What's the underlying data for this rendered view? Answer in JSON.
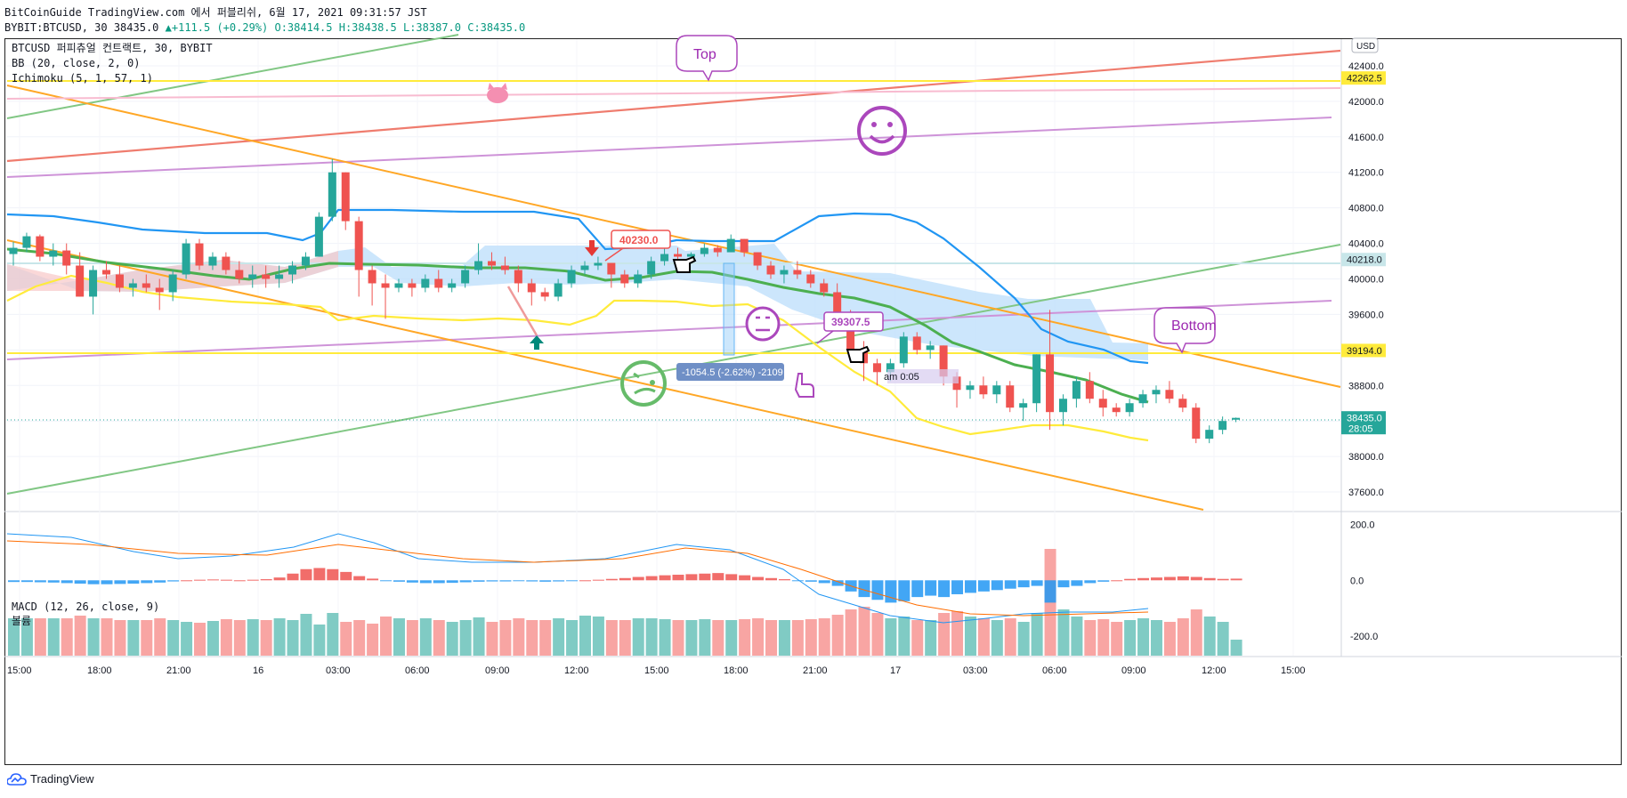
{
  "header": {
    "line1": "BitCoinGuide TradingView.com 에서 퍼블리쉬, 6월 17, 2021 09:31:57 JST",
    "symbol": "BYBIT:BTCUSD, 30",
    "price": "38435.0",
    "change": "+111.5 (+0.29%)",
    "ohlc": "O:38414.5 H:38438.5 L:38387.0 C:38435.0"
  },
  "legend": {
    "title": "BTCUSD 퍼피츄얼 컨트랙트, 30, BYBIT",
    "bb": "BB (20, close, 2, 0)",
    "ichimoku": "Ichimoku (5, 1, 57, 1)",
    "macd": "MACD (12, 26, close, 9)",
    "volume": "볼륨"
  },
  "footer": {
    "brand": "TradingView"
  },
  "colors": {
    "up": "#26a69a",
    "down": "#ef5350",
    "bbBasis": "#4caf50",
    "bbUpper": "#2196f3",
    "bbLower": "#ffeb3b",
    "cloud": "#bbdefb",
    "orange": "#ffa726",
    "green": "#81c784",
    "purple": "#ce93d8",
    "red": "#ef7c6e",
    "yellow": "#ffeb3b",
    "pink": "#f8bbd0"
  },
  "chart_data": {
    "type": "candlestick",
    "currency": "USD",
    "ylim": [
      37400,
      42700
    ],
    "y_ticks": [
      37600,
      38000,
      38400,
      38800,
      39200,
      39600,
      40000,
      40400,
      40800,
      41200,
      41600,
      42000,
      42400
    ],
    "x_ticks": [
      "15:00",
      "18:00",
      "21:00",
      "16",
      "03:00",
      "06:00",
      "09:00",
      "12:00",
      "15:00",
      "18:00",
      "21:00",
      "17",
      "03:00",
      "06:00",
      "09:00",
      "12:00",
      "15:00"
    ],
    "price_labels": [
      {
        "value": 42262.5,
        "text": "42262.5",
        "color": "#ffeb3b"
      },
      {
        "value": 40218.0,
        "text": "40218.0",
        "color": "#c8e6e9"
      },
      {
        "value": 39194.0,
        "text": "39194.0",
        "color": "#ffeb3b"
      },
      {
        "value": 38435.0,
        "text": "38435.0",
        "sub": "28:05",
        "color": "#26a69a"
      }
    ],
    "candles": [
      [
        40280,
        40420,
        40150,
        40350
      ],
      [
        40350,
        40520,
        40300,
        40480
      ],
      [
        40480,
        40500,
        40200,
        40250
      ],
      [
        40250,
        40400,
        40150,
        40320
      ],
      [
        40320,
        40400,
        40050,
        40150
      ],
      [
        40150,
        40300,
        39800,
        39800
      ],
      [
        39800,
        40150,
        39600,
        40100
      ],
      [
        40100,
        40200,
        40000,
        40050
      ],
      [
        40050,
        40150,
        39850,
        39900
      ],
      [
        39900,
        40000,
        39800,
        39950
      ],
      [
        39950,
        40050,
        39850,
        39900
      ],
      [
        39900,
        40000,
        39650,
        39850
      ],
      [
        39850,
        40100,
        39750,
        40050
      ],
      [
        40050,
        40450,
        40000,
        40400
      ],
      [
        40400,
        40450,
        40100,
        40150
      ],
      [
        40150,
        40300,
        40100,
        40250
      ],
      [
        40250,
        40300,
        40050,
        40100
      ],
      [
        40100,
        40200,
        39950,
        40000
      ],
      [
        40000,
        40150,
        39900,
        40050
      ],
      [
        40050,
        40150,
        39900,
        40000
      ],
      [
        40000,
        40150,
        39900,
        40050
      ],
      [
        40050,
        40200,
        39950,
        40150
      ],
      [
        40150,
        40300,
        40100,
        40250
      ],
      [
        40250,
        40750,
        40250,
        40700
      ],
      [
        40700,
        41350,
        40650,
        41200
      ],
      [
        41200,
        41200,
        40550,
        40650
      ],
      [
        40650,
        40700,
        39800,
        40100
      ],
      [
        40100,
        40150,
        39700,
        39950
      ],
      [
        39950,
        40050,
        39550,
        39900
      ],
      [
        39900,
        40000,
        39850,
        39950
      ],
      [
        39950,
        40000,
        39800,
        39900
      ],
      [
        39900,
        40050,
        39850,
        40000
      ],
      [
        40000,
        40100,
        39850,
        39900
      ],
      [
        39900,
        40000,
        39850,
        39950
      ],
      [
        39950,
        40150,
        39900,
        40100
      ],
      [
        40100,
        40400,
        40050,
        40200
      ],
      [
        40200,
        40300,
        40100,
        40150
      ],
      [
        40150,
        40250,
        40050,
        40100
      ],
      [
        40100,
        40150,
        39850,
        39950
      ],
      [
        39950,
        40000,
        39700,
        39850
      ],
      [
        39850,
        39900,
        39750,
        39800
      ],
      [
        39800,
        40000,
        39750,
        39950
      ],
      [
        39950,
        40150,
        39900,
        40100
      ],
      [
        40100,
        40200,
        40050,
        40150
      ],
      [
        40150,
        40250,
        40100,
        40180
      ],
      [
        40180,
        40180,
        39900,
        40050
      ],
      [
        40050,
        40100,
        39900,
        39950
      ],
      [
        39950,
        40100,
        39900,
        40050
      ],
      [
        40050,
        40250,
        40000,
        40200
      ],
      [
        40200,
        40350,
        40150,
        40280
      ],
      [
        40280,
        40350,
        40180,
        40250
      ],
      [
        40250,
        40300,
        40200,
        40280
      ],
      [
        40280,
        40400,
        40250,
        40350
      ],
      [
        40350,
        40380,
        40250,
        40300
      ],
      [
        40300,
        40500,
        40300,
        40450
      ],
      [
        40450,
        40450,
        40250,
        40300
      ],
      [
        40300,
        40300,
        40100,
        40150
      ],
      [
        40150,
        40200,
        40000,
        40050
      ],
      [
        40050,
        40150,
        39950,
        40100
      ],
      [
        40100,
        40200,
        40000,
        40050
      ],
      [
        40050,
        40100,
        39900,
        39950
      ],
      [
        39950,
        40000,
        39800,
        39850
      ],
      [
        39850,
        39950,
        39600,
        39600
      ],
      [
        39600,
        39650,
        39100,
        39200
      ],
      [
        39200,
        39300,
        38850,
        39050
      ],
      [
        39050,
        39100,
        38800,
        38950
      ],
      [
        38950,
        39100,
        38850,
        39050
      ],
      [
        39050,
        39400,
        39000,
        39350
      ],
      [
        39350,
        39400,
        39150,
        39200
      ],
      [
        39200,
        39300,
        39100,
        39250
      ],
      [
        39250,
        39250,
        38800,
        38900
      ],
      [
        38900,
        38950,
        38550,
        38750
      ],
      [
        38750,
        38850,
        38650,
        38800
      ],
      [
        38800,
        38900,
        38650,
        38700
      ],
      [
        38700,
        38850,
        38600,
        38800
      ],
      [
        38800,
        38850,
        38500,
        38550
      ],
      [
        38550,
        38650,
        38400,
        38600
      ],
      [
        38600,
        39150,
        38500,
        39150
      ],
      [
        39150,
        39650,
        38300,
        38500
      ],
      [
        38500,
        38700,
        38350,
        38650
      ],
      [
        38650,
        38900,
        38550,
        38850
      ],
      [
        38850,
        38950,
        38600,
        38650
      ],
      [
        38650,
        38750,
        38450,
        38550
      ],
      [
        38550,
        38600,
        38450,
        38500
      ],
      [
        38500,
        38650,
        38450,
        38600
      ],
      [
        38600,
        38750,
        38550,
        38700
      ],
      [
        38700,
        38800,
        38600,
        38750
      ],
      [
        38750,
        38850,
        38600,
        38650
      ],
      [
        38650,
        38700,
        38500,
        38550
      ],
      [
        38550,
        38600,
        38150,
        38200
      ],
      [
        38200,
        38350,
        38150,
        38300
      ],
      [
        38300,
        38450,
        38250,
        38400
      ],
      [
        38414.5,
        38438.5,
        38387,
        38435
      ]
    ],
    "macd": {
      "ylim": [
        -270,
        240
      ],
      "y_ticks": [
        200,
        0,
        -200
      ]
    },
    "annotations": [
      "Top",
      "Bottom",
      "40230.0",
      "39307.5",
      "-1054.5 (-2.62%) -2109",
      "am 0:05"
    ]
  }
}
